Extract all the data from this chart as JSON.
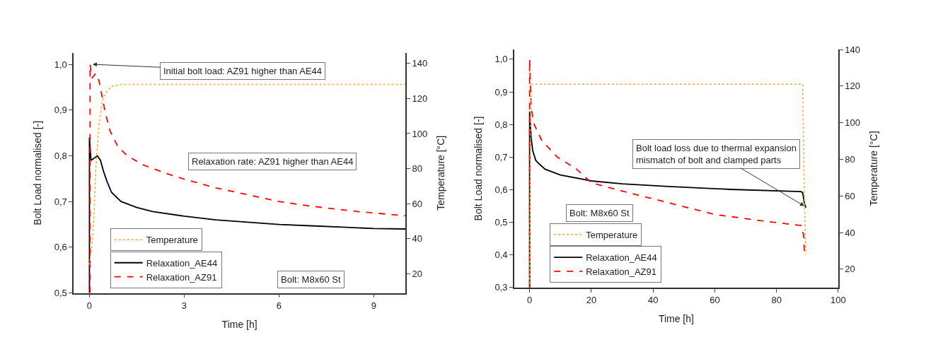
{
  "chart_data": [
    {
      "type": "line",
      "xlabel": "Time [h]",
      "ylabel": "Bolt Load normalised [-]",
      "y2label": "Temperature [°C]",
      "xlim": [
        -0.5,
        10
      ],
      "xticks": [
        0,
        3,
        6,
        9
      ],
      "ylim": [
        0.5,
        1.025
      ],
      "yticks": [
        {
          "value": 0.5,
          "label": "0,5"
        },
        {
          "value": 0.6,
          "label": "0,6"
        },
        {
          "value": 0.7,
          "label": "0,7"
        },
        {
          "value": 0.8,
          "label": "0,8"
        },
        {
          "value": 0.9,
          "label": "0,9"
        },
        {
          "value": 1.0,
          "label": "1,0"
        }
      ],
      "y2lim": [
        9,
        146
      ],
      "y2ticks": [
        20,
        40,
        60,
        80,
        100,
        120,
        140
      ],
      "legend": "bottom left",
      "series": [
        {
          "name": "Temperature",
          "color": "#f5a623",
          "axis": "y2",
          "line_style": "dotted",
          "x": [
            0,
            0.1,
            0.15,
            0.2,
            0.3,
            0.4,
            0.5,
            0.7,
            1.0,
            10
          ],
          "values": [
            25,
            40,
            55,
            80,
            105,
            118,
            123,
            127,
            128,
            128
          ]
        },
        {
          "name": "Relaxation_AE44",
          "color": "#000000",
          "line_style": "solid",
          "x": [
            0,
            0,
            0.05,
            0.15,
            0.25,
            0.35,
            0.45,
            0.55,
            0.7,
            1.0,
            1.5,
            2,
            3,
            4,
            5,
            6,
            7,
            8,
            9,
            10
          ],
          "values": [
            0.5,
            0.84,
            0.79,
            0.795,
            0.8,
            0.79,
            0.765,
            0.745,
            0.72,
            0.7,
            0.687,
            0.678,
            0.668,
            0.66,
            0.655,
            0.65,
            0.647,
            0.644,
            0.641,
            0.64
          ]
        },
        {
          "name": "Relaxation_AZ91",
          "color": "#ff0000",
          "line_style": "dashed",
          "x": [
            0.02,
            0.02,
            0.08,
            0.2,
            0.3,
            0.4,
            0.5,
            0.65,
            0.9,
            1.2,
            1.7,
            2.5,
            3,
            4,
            5,
            6,
            7,
            8.5,
            10
          ],
          "values": [
            0.5,
            1.0,
            0.97,
            0.98,
            0.965,
            0.93,
            0.895,
            0.855,
            0.82,
            0.8,
            0.78,
            0.76,
            0.749,
            0.73,
            0.715,
            0.7,
            0.69,
            0.678,
            0.669
          ]
        }
      ],
      "annotations": [
        {
          "text": "Initial bolt load: AZ91 higher than AE44",
          "x": 0.1,
          "y": 1.0
        },
        "Relaxation rate: AZ91 higher than AE44",
        "Bolt: M8x60 St"
      ]
    },
    {
      "type": "line",
      "xlabel": "Time [h]",
      "ylabel": "Bolt Load normalised [-]",
      "y2label": "Temperature [°C]",
      "xlim": [
        -5,
        100
      ],
      "xticks": [
        0,
        20,
        40,
        60,
        80,
        100
      ],
      "ylim": [
        0.3,
        1.03
      ],
      "yticks": [
        {
          "value": 0.3,
          "label": "0,3"
        },
        {
          "value": 0.4,
          "label": "0,4"
        },
        {
          "value": 0.5,
          "label": "0,5"
        },
        {
          "value": 0.6,
          "label": "0,6"
        },
        {
          "value": 0.7,
          "label": "0,7"
        },
        {
          "value": 0.8,
          "label": "0,8"
        },
        {
          "value": 0.9,
          "label": "0,9"
        },
        {
          "value": 1.0,
          "label": "1,0"
        }
      ],
      "y2lim": [
        10,
        140
      ],
      "y2ticks": [
        20,
        40,
        60,
        80,
        100,
        120,
        140
      ],
      "legend": "bottom left",
      "series": [
        {
          "name": "Temperature",
          "color": "#f5a623",
          "axis": "y2",
          "line_style": "dotted",
          "x": [
            0,
            0.3,
            0.6,
            88.5,
            89,
            89.5
          ],
          "values": [
            12,
            100,
            121,
            121,
            60,
            28
          ]
        },
        {
          "name": "Relaxation_AE44",
          "color": "#000000",
          "line_style": "solid",
          "x": [
            0,
            0,
            0.5,
            1,
            2,
            3,
            5,
            10,
            20,
            30,
            45,
            65,
            88,
            88.5,
            89,
            89.5
          ],
          "values": [
            0.3,
            0.84,
            0.76,
            0.72,
            0.69,
            0.68,
            0.663,
            0.645,
            0.627,
            0.618,
            0.61,
            0.601,
            0.594,
            0.59,
            0.56,
            0.545
          ]
        },
        {
          "name": "Relaxation_AZ91",
          "color": "#ff0000",
          "line_style": "dashed",
          "x": [
            0,
            0,
            0.5,
            1.5,
            4,
            9,
            15,
            20,
            30,
            45,
            60,
            75,
            88,
            88.8,
            89
          ],
          "values": [
            0.3,
            1.0,
            0.85,
            0.8,
            0.75,
            0.7,
            0.665,
            0.621,
            0.596,
            0.56,
            0.524,
            0.505,
            0.49,
            0.46,
            0.41
          ]
        }
      ],
      "annotations": [
        {
          "text": "Bolt load loss due to thermal expansion\nmismatch of bolt and clamped parts",
          "x": 89,
          "y": 0.55
        },
        "Bolt: M8x60 St"
      ]
    }
  ]
}
